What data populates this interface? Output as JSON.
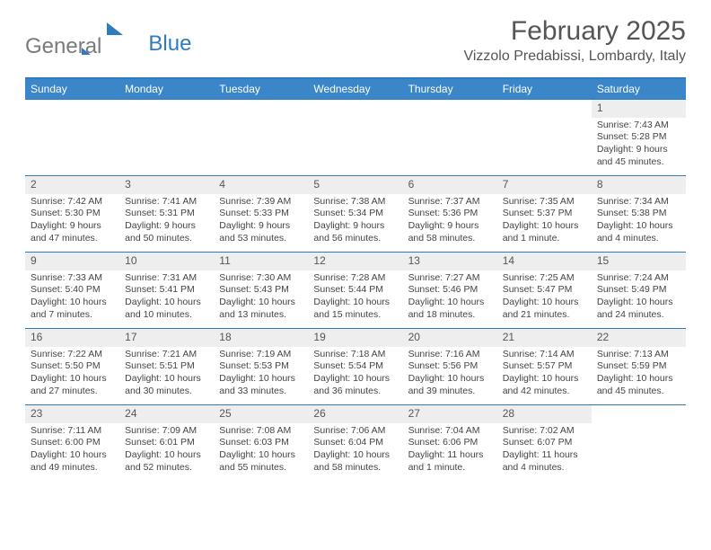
{
  "brand": {
    "part1": "General",
    "part2": "Blue"
  },
  "title": "February 2025",
  "location": "Vizzolo Predabissi, Lombardy, Italy",
  "colors": {
    "header_bg": "#3a86c8",
    "header_text": "#ffffff",
    "rule": "#2f7bbf",
    "daynum_bg": "#eeeeee",
    "text": "#444444",
    "title": "#555555"
  },
  "columns": [
    "Sunday",
    "Monday",
    "Tuesday",
    "Wednesday",
    "Thursday",
    "Friday",
    "Saturday"
  ],
  "weeks": [
    [
      {
        "empty": true
      },
      {
        "empty": true
      },
      {
        "empty": true
      },
      {
        "empty": true
      },
      {
        "empty": true
      },
      {
        "empty": true
      },
      {
        "day": "1",
        "sunrise": "7:43 AM",
        "sunset": "5:28 PM",
        "daylight": "9 hours and 45 minutes."
      }
    ],
    [
      {
        "day": "2",
        "sunrise": "7:42 AM",
        "sunset": "5:30 PM",
        "daylight": "9 hours and 47 minutes."
      },
      {
        "day": "3",
        "sunrise": "7:41 AM",
        "sunset": "5:31 PM",
        "daylight": "9 hours and 50 minutes."
      },
      {
        "day": "4",
        "sunrise": "7:39 AM",
        "sunset": "5:33 PM",
        "daylight": "9 hours and 53 minutes."
      },
      {
        "day": "5",
        "sunrise": "7:38 AM",
        "sunset": "5:34 PM",
        "daylight": "9 hours and 56 minutes."
      },
      {
        "day": "6",
        "sunrise": "7:37 AM",
        "sunset": "5:36 PM",
        "daylight": "9 hours and 58 minutes."
      },
      {
        "day": "7",
        "sunrise": "7:35 AM",
        "sunset": "5:37 PM",
        "daylight": "10 hours and 1 minute."
      },
      {
        "day": "8",
        "sunrise": "7:34 AM",
        "sunset": "5:38 PM",
        "daylight": "10 hours and 4 minutes."
      }
    ],
    [
      {
        "day": "9",
        "sunrise": "7:33 AM",
        "sunset": "5:40 PM",
        "daylight": "10 hours and 7 minutes."
      },
      {
        "day": "10",
        "sunrise": "7:31 AM",
        "sunset": "5:41 PM",
        "daylight": "10 hours and 10 minutes."
      },
      {
        "day": "11",
        "sunrise": "7:30 AM",
        "sunset": "5:43 PM",
        "daylight": "10 hours and 13 minutes."
      },
      {
        "day": "12",
        "sunrise": "7:28 AM",
        "sunset": "5:44 PM",
        "daylight": "10 hours and 15 minutes."
      },
      {
        "day": "13",
        "sunrise": "7:27 AM",
        "sunset": "5:46 PM",
        "daylight": "10 hours and 18 minutes."
      },
      {
        "day": "14",
        "sunrise": "7:25 AM",
        "sunset": "5:47 PM",
        "daylight": "10 hours and 21 minutes."
      },
      {
        "day": "15",
        "sunrise": "7:24 AM",
        "sunset": "5:49 PM",
        "daylight": "10 hours and 24 minutes."
      }
    ],
    [
      {
        "day": "16",
        "sunrise": "7:22 AM",
        "sunset": "5:50 PM",
        "daylight": "10 hours and 27 minutes."
      },
      {
        "day": "17",
        "sunrise": "7:21 AM",
        "sunset": "5:51 PM",
        "daylight": "10 hours and 30 minutes."
      },
      {
        "day": "18",
        "sunrise": "7:19 AM",
        "sunset": "5:53 PM",
        "daylight": "10 hours and 33 minutes."
      },
      {
        "day": "19",
        "sunrise": "7:18 AM",
        "sunset": "5:54 PM",
        "daylight": "10 hours and 36 minutes."
      },
      {
        "day": "20",
        "sunrise": "7:16 AM",
        "sunset": "5:56 PM",
        "daylight": "10 hours and 39 minutes."
      },
      {
        "day": "21",
        "sunrise": "7:14 AM",
        "sunset": "5:57 PM",
        "daylight": "10 hours and 42 minutes."
      },
      {
        "day": "22",
        "sunrise": "7:13 AM",
        "sunset": "5:59 PM",
        "daylight": "10 hours and 45 minutes."
      }
    ],
    [
      {
        "day": "23",
        "sunrise": "7:11 AM",
        "sunset": "6:00 PM",
        "daylight": "10 hours and 49 minutes."
      },
      {
        "day": "24",
        "sunrise": "7:09 AM",
        "sunset": "6:01 PM",
        "daylight": "10 hours and 52 minutes."
      },
      {
        "day": "25",
        "sunrise": "7:08 AM",
        "sunset": "6:03 PM",
        "daylight": "10 hours and 55 minutes."
      },
      {
        "day": "26",
        "sunrise": "7:06 AM",
        "sunset": "6:04 PM",
        "daylight": "10 hours and 58 minutes."
      },
      {
        "day": "27",
        "sunrise": "7:04 AM",
        "sunset": "6:06 PM",
        "daylight": "11 hours and 1 minute."
      },
      {
        "day": "28",
        "sunrise": "7:02 AM",
        "sunset": "6:07 PM",
        "daylight": "11 hours and 4 minutes."
      },
      {
        "empty": true
      }
    ]
  ],
  "labels": {
    "sunrise": "Sunrise:",
    "sunset": "Sunset:",
    "daylight": "Daylight:"
  }
}
